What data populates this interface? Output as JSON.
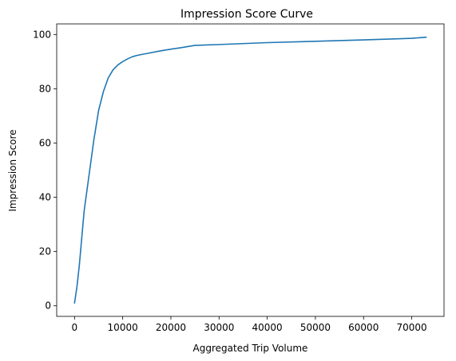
{
  "chart_data": {
    "type": "line",
    "title": "Impression Score Curve",
    "xlabel": "Aggregated Trip Volume",
    "ylabel": "Impression Score",
    "xlim": [
      -3700,
      76700
    ],
    "ylim": [
      -3.9,
      103.9
    ],
    "xticks": [
      0,
      10000,
      20000,
      30000,
      40000,
      50000,
      60000,
      70000
    ],
    "yticks": [
      0,
      20,
      40,
      60,
      80,
      100
    ],
    "grid": false,
    "legend": "none",
    "series": [
      {
        "color": "#1f77b4",
        "x": [
          0,
          500,
          1000,
          1500,
          2000,
          3000,
          4000,
          5000,
          6000,
          7000,
          8000,
          9000,
          10000,
          11000,
          12000,
          13000,
          15000,
          18000,
          20000,
          22000,
          25000,
          30000,
          40000,
          50000,
          60000,
          70000,
          73000
        ],
        "y": [
          1,
          7,
          15,
          25,
          35,
          48,
          61,
          72,
          79,
          84,
          87,
          88.8,
          90,
          91,
          91.8,
          92.3,
          93,
          94,
          94.6,
          95.1,
          96,
          96.3,
          97,
          97.5,
          98,
          98.6,
          99
        ]
      }
    ]
  }
}
